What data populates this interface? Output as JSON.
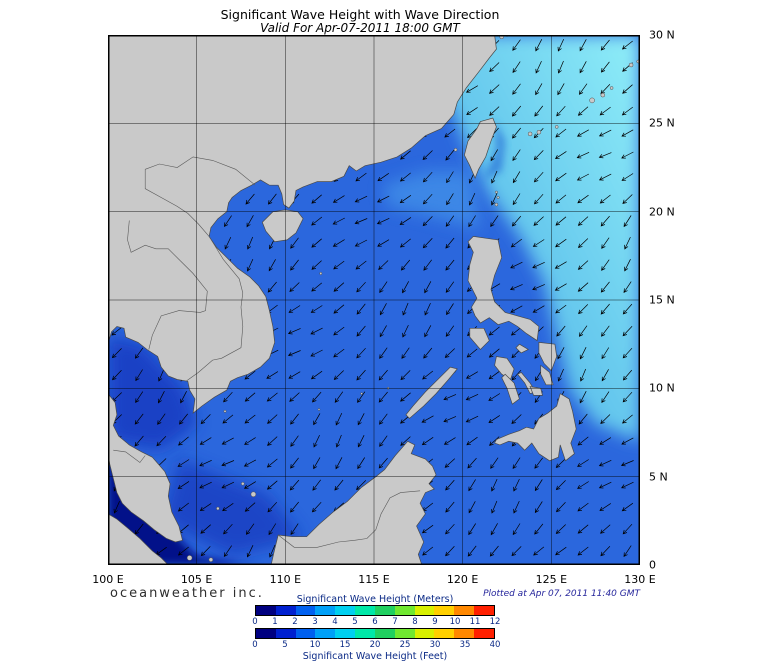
{
  "header": {
    "title": "Significant Wave Height with Wave Direction",
    "subtitle": "Valid For Apr-07-2011 18:00 GMT"
  },
  "map": {
    "lon_labels": [
      "100 E",
      "105 E",
      "110 E",
      "115 E",
      "120 E",
      "125 E",
      "130 E"
    ],
    "lat_labels": [
      "30 N",
      "25 N",
      "20 N",
      "15 N",
      "10 N",
      "5 N",
      "0"
    ],
    "lon_range_deg": [
      100,
      130
    ],
    "lat_range_deg": [
      0,
      30
    ],
    "grid_step_deg": 5,
    "wave_direction": "southwest"
  },
  "legend": {
    "meters_title": "Significant Wave Height (Meters)",
    "meters_ticks": [
      "0",
      "1",
      "2",
      "3",
      "4",
      "5",
      "6",
      "7",
      "8",
      "9",
      "10",
      "11",
      "12"
    ],
    "feet_title": "Significant Wave Height (Feet)",
    "feet_ticks": [
      "0",
      "5",
      "10",
      "15",
      "20",
      "25",
      "30",
      "35",
      "40"
    ],
    "colors": [
      "#000080",
      "#0020d0",
      "#0060f0",
      "#00a0f8",
      "#00d0f0",
      "#00e8a8",
      "#20d060",
      "#70e830",
      "#d8f000",
      "#ffd000",
      "#ff8800",
      "#ff2000"
    ]
  },
  "footer": {
    "credit": "oceanweather inc.",
    "plotted": "Plotted at Apr 07, 2011 11:40 GMT"
  },
  "colors": {
    "ocean_base": "#2b67dd",
    "pacific_low": "#3fa4e4",
    "pacific_high": "#8feef8",
    "strait_tongue": "#3f8de8",
    "gulf_thailand": "#1638c0",
    "sw_shelf": "#1338bd",
    "deep_navy": "#000d85",
    "kuroshio": "#2e79da",
    "land": "#c9c9c9",
    "land_border": "#4a4a4a",
    "country_border": "#5a5a5a",
    "grid": "#000000",
    "arrow": "#000000"
  }
}
